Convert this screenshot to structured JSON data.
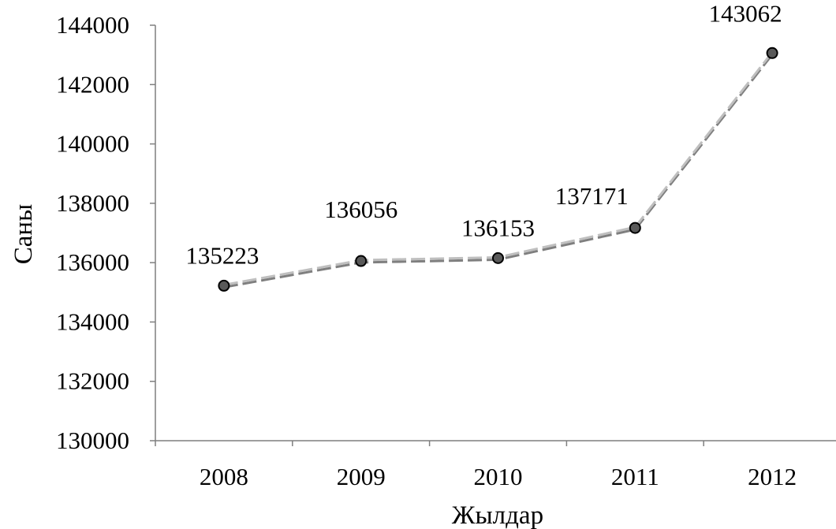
{
  "chart_data": {
    "type": "line",
    "title": "",
    "xlabel": "Жылдар",
    "ylabel": "Саны",
    "categories": [
      "2008",
      "2009",
      "2010",
      "2011",
      "2012"
    ],
    "series": [
      {
        "values": [
          135223,
          136056,
          136153,
          137171,
          143062
        ],
        "data_labels": [
          "135223",
          "136056",
          "136153",
          "137171",
          "143062"
        ]
      }
    ],
    "ylim": [
      130000,
      144000
    ],
    "yticks": [
      130000,
      132000,
      134000,
      136000,
      138000,
      140000,
      142000,
      144000
    ],
    "ytick_labels": [
      "130000",
      "132000",
      "134000",
      "136000",
      "138000",
      "140000",
      "142000",
      "144000"
    ],
    "grid": false,
    "legend": "none",
    "colors": {
      "line": "#7f7f7f",
      "line_highlight": "#bfbfbf",
      "marker_fill": "#595959",
      "marker_edge": "#000000",
      "axis": "#7f7f7f",
      "text": "#000000"
    }
  }
}
